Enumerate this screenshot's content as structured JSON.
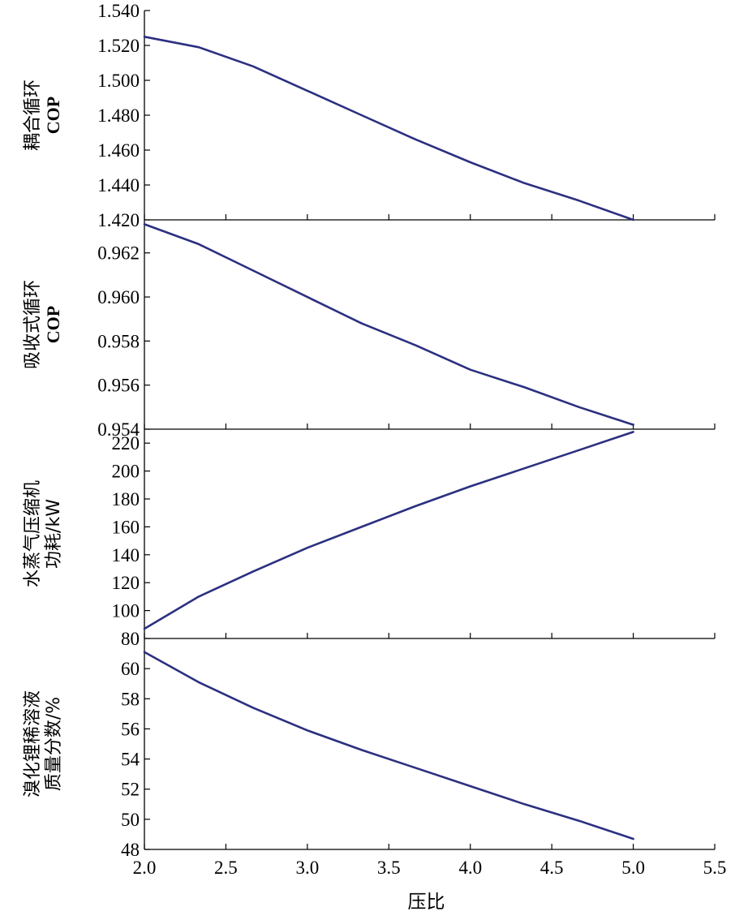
{
  "chart_data": [
    {
      "type": "line",
      "ylabel_lines": [
        "耦合循环",
        "COP"
      ],
      "xlim": [
        2.0,
        5.5
      ],
      "ylim": [
        1.42,
        1.54
      ],
      "yticks": [
        "1.420",
        "1.440",
        "1.460",
        "1.480",
        "1.500",
        "1.520",
        "1.540"
      ],
      "series": [
        {
          "color": "#2b3080",
          "x": [
            2.0,
            2.333,
            2.667,
            3.0,
            3.333,
            3.667,
            4.0,
            4.333,
            4.667,
            5.0
          ],
          "y": [
            1.525,
            1.519,
            1.508,
            1.494,
            1.48,
            1.466,
            1.453,
            1.441,
            1.431,
            1.42
          ]
        }
      ]
    },
    {
      "type": "line",
      "ylabel_lines": [
        "吸收式循环",
        "COP"
      ],
      "xlim": [
        2.0,
        5.5
      ],
      "ylim": [
        0.954,
        0.9635
      ],
      "yticks": [
        "0.954",
        "0.956",
        "0.958",
        "0.960",
        "0.962"
      ],
      "series": [
        {
          "color": "#2b3080",
          "x": [
            2.0,
            2.333,
            2.667,
            3.0,
            3.333,
            3.667,
            4.0,
            4.333,
            4.667,
            5.0
          ],
          "y": [
            0.9633,
            0.9624,
            0.9612,
            0.96,
            0.9588,
            0.9578,
            0.9567,
            0.9559,
            0.955,
            0.9542
          ]
        }
      ]
    },
    {
      "type": "line",
      "ylabel_lines": [
        "水蒸气压缩机",
        "功耗/kW"
      ],
      "xlim": [
        2.0,
        5.5
      ],
      "ylim": [
        80,
        230
      ],
      "yticks": [
        "80",
        "100",
        "120",
        "140",
        "160",
        "180",
        "200",
        "220"
      ],
      "series": [
        {
          "color": "#2b3080",
          "x": [
            2.0,
            2.333,
            2.667,
            3.0,
            3.333,
            3.667,
            4.0,
            4.333,
            4.667,
            5.0
          ],
          "y": [
            87,
            110,
            128,
            145,
            160,
            175,
            189,
            202,
            215,
            228
          ]
        }
      ]
    },
    {
      "type": "line",
      "ylabel_lines": [
        "溴化锂稀溶液",
        "质量分数/%"
      ],
      "xlabel": "压比",
      "xlim": [
        2.0,
        5.5
      ],
      "ylim": [
        48,
        62
      ],
      "xticks": [
        "2.0",
        "2.5",
        "3.0",
        "3.5",
        "4.0",
        "4.5",
        "5.0",
        "5.5"
      ],
      "yticks": [
        "48",
        "50",
        "52",
        "54",
        "56",
        "58",
        "60"
      ],
      "series": [
        {
          "color": "#2b3080",
          "x": [
            2.0,
            2.333,
            2.667,
            3.0,
            3.333,
            3.667,
            4.0,
            4.333,
            4.667,
            5.0
          ],
          "y": [
            61.1,
            59.1,
            57.4,
            55.9,
            54.6,
            53.4,
            52.2,
            51.0,
            49.9,
            48.7
          ]
        }
      ]
    }
  ]
}
